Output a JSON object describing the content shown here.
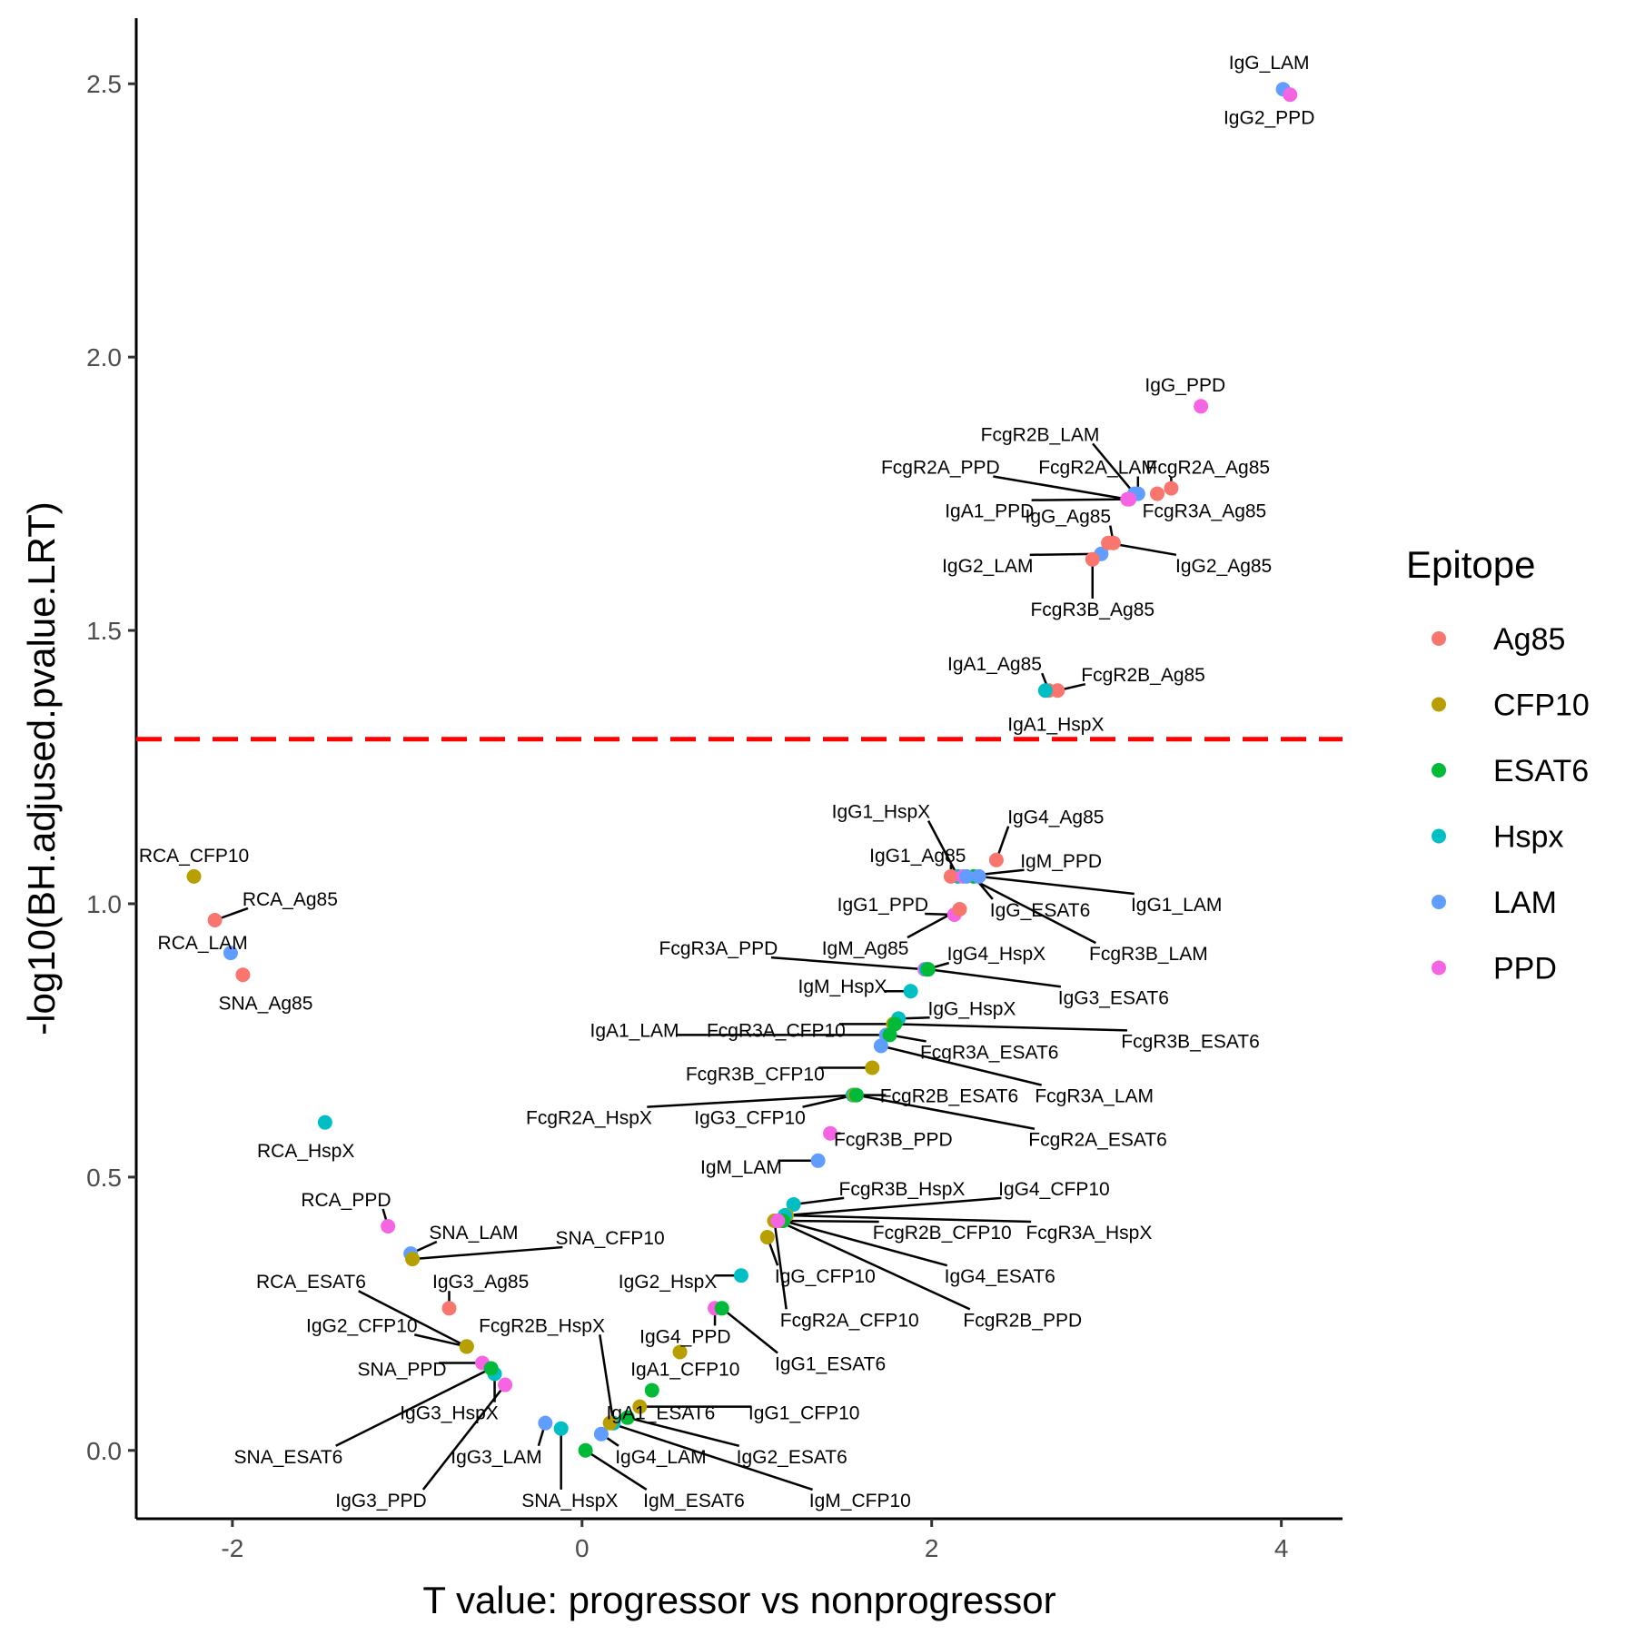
{
  "chart_data": {
    "type": "scatter",
    "title": "",
    "xlabel": "T value: progressor vs nonprogressor",
    "ylabel": "-log10(BH.adjused.pvalue.LRT)",
    "xlim": [
      -2.55,
      4.35
    ],
    "ylim": [
      -0.125,
      2.62
    ],
    "xticks": [
      -2,
      0,
      2,
      4
    ],
    "yticks": [
      0.0,
      0.5,
      1.0,
      1.5,
      2.0,
      2.5
    ],
    "ytick_labels": [
      "0.0",
      "0.5",
      "1.0",
      "1.5",
      "2.0",
      "2.5"
    ],
    "grid": false,
    "threshold_line": {
      "y": 1.301,
      "color": "#FF0000",
      "style": "dashed"
    },
    "legend": {
      "title": "Epitope",
      "placement": "right",
      "items": [
        {
          "name": "Ag85",
          "color": "#F8766D"
        },
        {
          "name": "CFP10",
          "color": "#B79F00"
        },
        {
          "name": "ESAT6",
          "color": "#00BA38"
        },
        {
          "name": "Hspx",
          "color": "#00BFC4"
        },
        {
          "name": "LAM",
          "color": "#619CFF"
        },
        {
          "name": "PPD",
          "color": "#F564E3"
        }
      ]
    },
    "points": [
      {
        "label": "IgG_LAM",
        "x": 4.01,
        "y": 2.49,
        "epitope": "LAM",
        "lx": 3.93,
        "ly": 2.54
      },
      {
        "label": "IgG2_PPD",
        "x": 4.05,
        "y": 2.48,
        "epitope": "PPD",
        "lx": 3.93,
        "ly": 2.44
      },
      {
        "label": "IgG_PPD",
        "x": 3.54,
        "y": 1.91,
        "epitope": "PPD",
        "lx": 3.45,
        "ly": 1.95
      },
      {
        "label": "FcgR2B_LAM",
        "x": 3.16,
        "y": 1.75,
        "epitope": "LAM",
        "lx": 2.62,
        "ly": 1.86
      },
      {
        "label": "FcgR2A_PPD",
        "x": 3.12,
        "y": 1.74,
        "epitope": "PPD",
        "lx": 2.05,
        "ly": 1.8
      },
      {
        "label": "FcgR2A_LAM",
        "x": 3.18,
        "y": 1.75,
        "epitope": "LAM",
        "lx": 2.95,
        "ly": 1.8
      },
      {
        "label": "FcgR2A_Ag85",
        "x": 3.37,
        "y": 1.76,
        "epitope": "Ag85",
        "lx": 3.58,
        "ly": 1.8
      },
      {
        "label": "IgA1_PPD",
        "x": 3.13,
        "y": 1.74,
        "epitope": "PPD",
        "lx": 2.33,
        "ly": 1.72
      },
      {
        "label": "FcgR3A_Ag85",
        "x": 3.29,
        "y": 1.75,
        "epitope": "Ag85",
        "lx": 3.56,
        "ly": 1.72
      },
      {
        "label": "IgG_Ag85",
        "x": 3.04,
        "y": 1.66,
        "epitope": "Ag85",
        "lx": 2.78,
        "ly": 1.71
      },
      {
        "label": "IgG2_LAM",
        "x": 2.97,
        "y": 1.64,
        "epitope": "LAM",
        "lx": 2.32,
        "ly": 1.62
      },
      {
        "label": "IgG2_Ag85",
        "x": 3.01,
        "y": 1.66,
        "epitope": "Ag85",
        "lx": 3.67,
        "ly": 1.62
      },
      {
        "label": "FcgR3B_Ag85",
        "x": 2.92,
        "y": 1.63,
        "epitope": "Ag85",
        "lx": 2.92,
        "ly": 1.54
      },
      {
        "label": "IgA1_Ag85",
        "x": 2.67,
        "y": 1.39,
        "epitope": "Ag85",
        "lx": 2.36,
        "ly": 1.44
      },
      {
        "label": "FcgR2B_Ag85",
        "x": 2.72,
        "y": 1.39,
        "epitope": "Ag85",
        "lx": 3.21,
        "ly": 1.42
      },
      {
        "label": "IgA1_HspX",
        "x": 2.65,
        "y": 1.39,
        "epitope": "Hspx",
        "lx": 2.71,
        "ly": 1.33
      },
      {
        "label": "IgG1_HspX",
        "x": 2.15,
        "y": 1.05,
        "epitope": "Hspx",
        "lx": 1.71,
        "ly": 1.17
      },
      {
        "label": "IgG4_Ag85",
        "x": 2.37,
        "y": 1.08,
        "epitope": "Ag85",
        "lx": 2.71,
        "ly": 1.16
      },
      {
        "label": "IgG1_Ag85",
        "x": 2.11,
        "y": 1.05,
        "epitope": "Ag85",
        "lx": 1.92,
        "ly": 1.09
      },
      {
        "label": "IgM_PPD",
        "x": 2.18,
        "y": 1.05,
        "epitope": "PPD",
        "lx": 2.74,
        "ly": 1.08
      },
      {
        "label": "IgG1_PPD",
        "x": 2.13,
        "y": 0.98,
        "epitope": "PPD",
        "lx": 1.72,
        "ly": 1.0
      },
      {
        "label": "IgG_ESAT6",
        "x": 2.24,
        "y": 1.05,
        "epitope": "ESAT6",
        "lx": 2.62,
        "ly": 0.99
      },
      {
        "label": "IgG1_LAM",
        "x": 2.27,
        "y": 1.05,
        "epitope": "LAM",
        "lx": 3.4,
        "ly": 1.0
      },
      {
        "label": "IgM_Ag85",
        "x": 2.16,
        "y": 0.99,
        "epitope": "Ag85",
        "lx": 1.62,
        "ly": 0.92
      },
      {
        "label": "FcgR3A_PPD",
        "x": 1.96,
        "y": 0.88,
        "epitope": "PPD",
        "lx": 0.78,
        "ly": 0.92
      },
      {
        "label": "IgG4_HspX",
        "x": 1.97,
        "y": 0.88,
        "epitope": "Hspx",
        "lx": 2.37,
        "ly": 0.91
      },
      {
        "label": "FcgR3B_LAM",
        "x": 2.2,
        "y": 1.05,
        "epitope": "LAM",
        "lx": 3.24,
        "ly": 0.91
      },
      {
        "label": "IgM_HspX",
        "x": 1.88,
        "y": 0.84,
        "epitope": "Hspx",
        "lx": 1.49,
        "ly": 0.85
      },
      {
        "label": "IgG3_ESAT6",
        "x": 1.98,
        "y": 0.88,
        "epitope": "ESAT6",
        "lx": 3.04,
        "ly": 0.83
      },
      {
        "label": "IgG_HspX",
        "x": 1.81,
        "y": 0.79,
        "epitope": "Hspx",
        "lx": 2.23,
        "ly": 0.81
      },
      {
        "label": "IgA1_LAM",
        "x": 1.74,
        "y": 0.76,
        "epitope": "LAM",
        "lx": 0.3,
        "ly": 0.77
      },
      {
        "label": "FcgR3A_CFP10",
        "x": 1.78,
        "y": 0.78,
        "epitope": "CFP10",
        "lx": 1.11,
        "ly": 0.77
      },
      {
        "label": "FcgR3B_ESAT6",
        "x": 1.79,
        "y": 0.78,
        "epitope": "ESAT6",
        "lx": 3.48,
        "ly": 0.75
      },
      {
        "label": "FcgR3A_ESAT6",
        "x": 1.76,
        "y": 0.76,
        "epitope": "ESAT6",
        "lx": 2.33,
        "ly": 0.73
      },
      {
        "label": "FcgR3B_CFP10",
        "x": 1.66,
        "y": 0.7,
        "epitope": "CFP10",
        "lx": 0.99,
        "ly": 0.69
      },
      {
        "label": "FcgR3A_LAM",
        "x": 1.71,
        "y": 0.74,
        "epitope": "LAM",
        "lx": 2.93,
        "ly": 0.65
      },
      {
        "label": "FcgR2B_ESAT6",
        "x": 1.55,
        "y": 0.65,
        "epitope": "ESAT6",
        "lx": 2.1,
        "ly": 0.65
      },
      {
        "label": "FcgR2A_HspX",
        "x": 1.55,
        "y": 0.65,
        "epitope": "Hspx",
        "lx": 0.04,
        "ly": 0.61
      },
      {
        "label": "IgG3_CFP10",
        "x": 1.56,
        "y": 0.65,
        "epitope": "CFP10",
        "lx": 0.96,
        "ly": 0.61
      },
      {
        "label": "FcgR2A_ESAT6",
        "x": 1.57,
        "y": 0.65,
        "epitope": "ESAT6",
        "lx": 2.95,
        "ly": 0.57
      },
      {
        "label": "FcgR3B_PPD",
        "x": 1.42,
        "y": 0.58,
        "epitope": "PPD",
        "lx": 1.78,
        "ly": 0.57
      },
      {
        "label": "IgM_LAM",
        "x": 1.35,
        "y": 0.53,
        "epitope": "LAM",
        "lx": 0.91,
        "ly": 0.52
      },
      {
        "label": "FcgR3B_HspX",
        "x": 1.21,
        "y": 0.45,
        "epitope": "Hspx",
        "lx": 1.83,
        "ly": 0.48
      },
      {
        "label": "IgG4_CFP10",
        "x": 1.17,
        "y": 0.43,
        "epitope": "CFP10",
        "lx": 2.7,
        "ly": 0.48
      },
      {
        "label": "FcgR2B_CFP10",
        "x": 1.14,
        "y": 0.42,
        "epitope": "CFP10",
        "lx": 2.06,
        "ly": 0.4
      },
      {
        "label": "FcgR3A_HspX",
        "x": 1.16,
        "y": 0.43,
        "epitope": "Hspx",
        "lx": 2.9,
        "ly": 0.4
      },
      {
        "label": "IgG4_ESAT6",
        "x": 1.15,
        "y": 0.42,
        "epitope": "ESAT6",
        "lx": 2.39,
        "ly": 0.32
      },
      {
        "label": "IgG_CFP10",
        "x": 1.06,
        "y": 0.39,
        "epitope": "CFP10",
        "lx": 1.39,
        "ly": 0.32
      },
      {
        "label": "IgG2_HspX",
        "x": 0.91,
        "y": 0.32,
        "epitope": "Hspx",
        "lx": 0.49,
        "ly": 0.31
      },
      {
        "label": "FcgR2A_CFP10",
        "x": 1.1,
        "y": 0.42,
        "epitope": "CFP10",
        "lx": 1.53,
        "ly": 0.24
      },
      {
        "label": "FcgR2B_PPD",
        "x": 1.12,
        "y": 0.42,
        "epitope": "PPD",
        "lx": 2.52,
        "ly": 0.24
      },
      {
        "label": "IgG4_PPD",
        "x": 0.76,
        "y": 0.26,
        "epitope": "PPD",
        "lx": 0.59,
        "ly": 0.21
      },
      {
        "label": "IgG1_ESAT6",
        "x": 0.8,
        "y": 0.26,
        "epitope": "ESAT6",
        "lx": 1.42,
        "ly": 0.16
      },
      {
        "label": "IgA1_CFP10",
        "x": 0.56,
        "y": 0.18,
        "epitope": "CFP10",
        "lx": 0.59,
        "ly": 0.15
      },
      {
        "label": "RCA_CFP10",
        "x": -2.22,
        "y": 1.05,
        "epitope": "CFP10",
        "lx": -2.22,
        "ly": 1.09
      },
      {
        "label": "RCA_Ag85",
        "x": -2.1,
        "y": 0.97,
        "epitope": "Ag85",
        "lx": -1.67,
        "ly": 1.01
      },
      {
        "label": "RCA_LAM",
        "x": -2.01,
        "y": 0.91,
        "epitope": "LAM",
        "lx": -2.17,
        "ly": 0.93
      },
      {
        "label": "SNA_Ag85",
        "x": -1.94,
        "y": 0.87,
        "epitope": "Ag85",
        "lx": -1.81,
        "ly": 0.82
      },
      {
        "label": "RCA_HspX",
        "x": -1.47,
        "y": 0.6,
        "epitope": "Hspx",
        "lx": -1.58,
        "ly": 0.55
      },
      {
        "label": "RCA_PPD",
        "x": -1.11,
        "y": 0.41,
        "epitope": "PPD",
        "lx": -1.35,
        "ly": 0.46
      },
      {
        "label": "SNA_LAM",
        "x": -0.98,
        "y": 0.36,
        "epitope": "LAM",
        "lx": -0.62,
        "ly": 0.4
      },
      {
        "label": "SNA_CFP10",
        "x": -0.97,
        "y": 0.35,
        "epitope": "CFP10",
        "lx": 0.16,
        "ly": 0.39
      },
      {
        "label": "RCA_ESAT6",
        "x": -0.66,
        "y": 0.19,
        "epitope": "ESAT6",
        "lx": -1.55,
        "ly": 0.31
      },
      {
        "label": "IgG3_Ag85",
        "x": -0.76,
        "y": 0.26,
        "epitope": "Ag85",
        "lx": -0.58,
        "ly": 0.31
      },
      {
        "label": "IgG2_CFP10",
        "x": -0.66,
        "y": 0.19,
        "epitope": "CFP10",
        "lx": -1.26,
        "ly": 0.23
      },
      {
        "label": "FcgR2B_HspX",
        "x": 0.18,
        "y": 0.05,
        "epitope": "Hspx",
        "lx": -0.23,
        "ly": 0.23
      },
      {
        "label": "SNA_PPD",
        "x": -0.57,
        "y": 0.16,
        "epitope": "PPD",
        "lx": -1.03,
        "ly": 0.15
      },
      {
        "label": "IgA1_ESAT6",
        "x": 0.4,
        "y": 0.11,
        "epitope": "ESAT6",
        "lx": 0.45,
        "ly": 0.07
      },
      {
        "label": "IgG1_CFP10",
        "x": 0.33,
        "y": 0.08,
        "epitope": "CFP10",
        "lx": 1.27,
        "ly": 0.07
      },
      {
        "label": "IgG3_HspX",
        "x": -0.5,
        "y": 0.14,
        "epitope": "Hspx",
        "lx": -0.76,
        "ly": 0.07
      },
      {
        "label": "SNA_ESAT6",
        "x": -0.52,
        "y": 0.15,
        "epitope": "ESAT6",
        "lx": -1.68,
        "ly": -0.01
      },
      {
        "label": "IgG3_LAM",
        "x": -0.21,
        "y": 0.05,
        "epitope": "LAM",
        "lx": -0.49,
        "ly": -0.01
      },
      {
        "label": "IgG4_LAM",
        "x": 0.11,
        "y": 0.03,
        "epitope": "LAM",
        "lx": 0.45,
        "ly": -0.01
      },
      {
        "label": "IgG2_ESAT6",
        "x": 0.26,
        "y": 0.06,
        "epitope": "ESAT6",
        "lx": 1.2,
        "ly": -0.01
      },
      {
        "label": "IgG3_PPD",
        "x": -0.44,
        "y": 0.12,
        "epitope": "PPD",
        "lx": -1.15,
        "ly": -0.09
      },
      {
        "label": "SNA_HspX",
        "x": -0.12,
        "y": 0.04,
        "epitope": "Hspx",
        "lx": -0.07,
        "ly": -0.09
      },
      {
        "label": "IgM_ESAT6",
        "x": 0.02,
        "y": 0.0,
        "epitope": "ESAT6",
        "lx": 0.64,
        "ly": -0.09
      },
      {
        "label": "IgM_CFP10",
        "x": 0.16,
        "y": 0.05,
        "epitope": "CFP10",
        "lx": 1.59,
        "ly": -0.09
      }
    ]
  }
}
